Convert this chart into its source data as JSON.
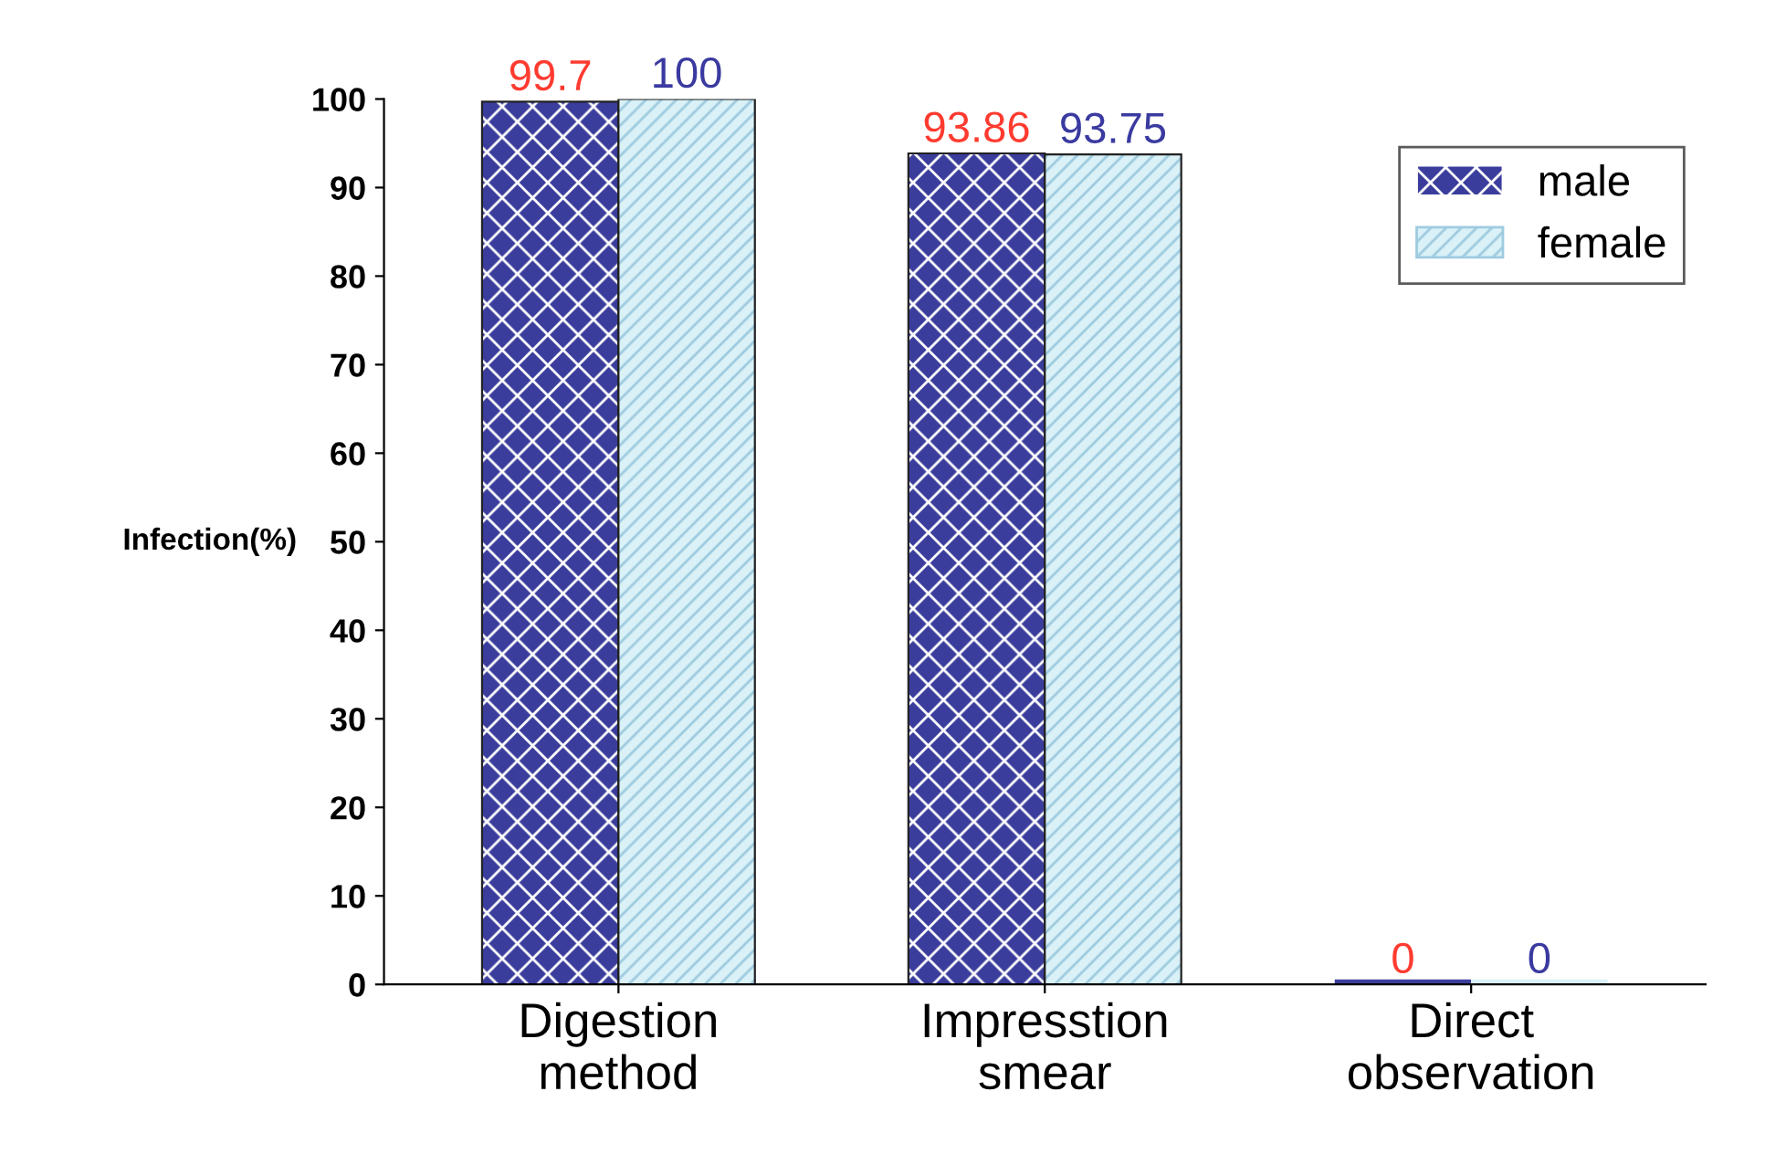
{
  "chart_data": {
    "type": "bar",
    "ylabel": "Infection(%)",
    "categories": [
      "Digestion\nmethod",
      "Impresstion\nsmear",
      "Direct\nobservation"
    ],
    "series": [
      {
        "name": "male",
        "color": "#3b3d9c",
        "values": [
          99.7,
          93.86,
          0
        ]
      },
      {
        "name": "female",
        "color": "#d9f1f7",
        "values": [
          100,
          93.75,
          0
        ]
      }
    ],
    "ylim": [
      0,
      100
    ],
    "yticks": [
      0,
      10,
      20,
      30,
      40,
      50,
      60,
      70,
      80,
      90,
      100
    ],
    "data_labels": true,
    "legend": "top right",
    "grid": false
  }
}
